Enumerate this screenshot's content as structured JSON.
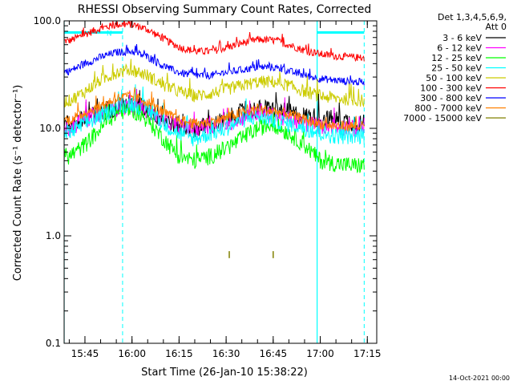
{
  "chart_data": {
    "type": "line",
    "title": "RHESSI Observing Summary Count Rates, Corrected",
    "xlabel": "Start Time (26-Jan-10 15:38:22)",
    "ylabel": "Corrected Count Rate (s⁻¹ detector⁻¹)",
    "y_scale": "log",
    "ylim": [
      0.1,
      100.0
    ],
    "xlim": [
      "15:38:22",
      "17:18:00"
    ],
    "y_ticks": [
      "100.0",
      "10.0",
      "1.0",
      "0.1"
    ],
    "x_ticks": [
      "15:45",
      "16:00",
      "16:15",
      "16:30",
      "16:45",
      "17:00",
      "17:15"
    ],
    "grid": false,
    "legend_position": "top-right, outside plot",
    "legend_header": [
      "Det 1,3,4,5,6,9,",
      "Att 0"
    ],
    "footer_date": "14-Oct-2021 00:00",
    "time_axis": [
      "15:40",
      "15:45",
      "15:50",
      "15:55",
      "16:00",
      "16:05",
      "16:10",
      "16:15",
      "16:20",
      "16:25",
      "16:30",
      "16:35",
      "16:40",
      "16:45",
      "16:50",
      "16:55",
      "17:00",
      "17:05",
      "17:10",
      "17:14"
    ],
    "series": [
      {
        "name": "3 - 6 keV",
        "color": "#000000",
        "values": [
          11,
          12,
          14,
          16,
          17,
          15,
          12,
          10.5,
          10,
          10.5,
          12,
          14,
          15,
          15,
          14,
          13,
          12.5,
          12,
          11.5,
          11
        ]
      },
      {
        "name": "6 - 12 keV",
        "color": "#ff00ff",
        "values": [
          10,
          12,
          14,
          15.5,
          16,
          14.5,
          12,
          10.5,
          10,
          10.5,
          11,
          12.5,
          14,
          13,
          12,
          11,
          10.5,
          10.5,
          10,
          10
        ]
      },
      {
        "name": "12 - 25 keV",
        "color": "#00ff00",
        "values": [
          5.5,
          7,
          10,
          14,
          15,
          12,
          8,
          5.5,
          5,
          5.5,
          6.5,
          8,
          10,
          11,
          9,
          7,
          5,
          4.7,
          4.5,
          4.5
        ]
      },
      {
        "name": "25 - 50 keV",
        "color": "#00ffff",
        "values": [
          9,
          11,
          13,
          16,
          17,
          15,
          11,
          9,
          8,
          9,
          10,
          12,
          13,
          12,
          11,
          10,
          9,
          8.5,
          8.5,
          8.5
        ]
      },
      {
        "name": "50 - 100 keV",
        "color": "#cccc00",
        "values": [
          18,
          22,
          28,
          33,
          35,
          31,
          25,
          22,
          20,
          21,
          23,
          25,
          27,
          27,
          25,
          22,
          20,
          19,
          18.5,
          18
        ]
      },
      {
        "name": "100 - 300 keV",
        "color": "#ff0000",
        "values": [
          65,
          75,
          85,
          92,
          93,
          83,
          68,
          57,
          52,
          52,
          56,
          62,
          67,
          66,
          60,
          53,
          49,
          47,
          46,
          45
        ]
      },
      {
        "name": "300 - 800 keV",
        "color": "#0000ff",
        "values": [
          34,
          40,
          46,
          51,
          52,
          46,
          38,
          33,
          31,
          31,
          33,
          35,
          37,
          37,
          34,
          31,
          29,
          28,
          27,
          27
        ]
      },
      {
        "name": "800 - 7000 keV",
        "color": "#ff8000",
        "values": [
          12,
          14,
          16,
          19,
          20,
          17.5,
          14,
          12,
          11,
          11.5,
          12.5,
          14,
          15,
          14.5,
          13.5,
          12,
          11,
          10.5,
          10.5,
          10.5
        ]
      },
      {
        "name": "7000 - 15000 keV",
        "color": "#808000",
        "points": [
          [
            "16:31",
            0.62
          ],
          [
            "16:31",
            0.72
          ],
          [
            "16:45",
            0.62
          ],
          [
            "16:45",
            0.72
          ]
        ]
      }
    ],
    "attenuator_bar": {
      "color": "#00ffff",
      "level": 78,
      "segments": [
        [
          "15:38:22",
          "15:57"
        ],
        [
          "16:59",
          "17:14"
        ]
      ],
      "marker": "N"
    },
    "vlines": {
      "color": "#00ffff",
      "solid": [
        "15:38:22",
        "16:59"
      ],
      "dashed": [
        "15:57",
        "17:14"
      ]
    }
  }
}
